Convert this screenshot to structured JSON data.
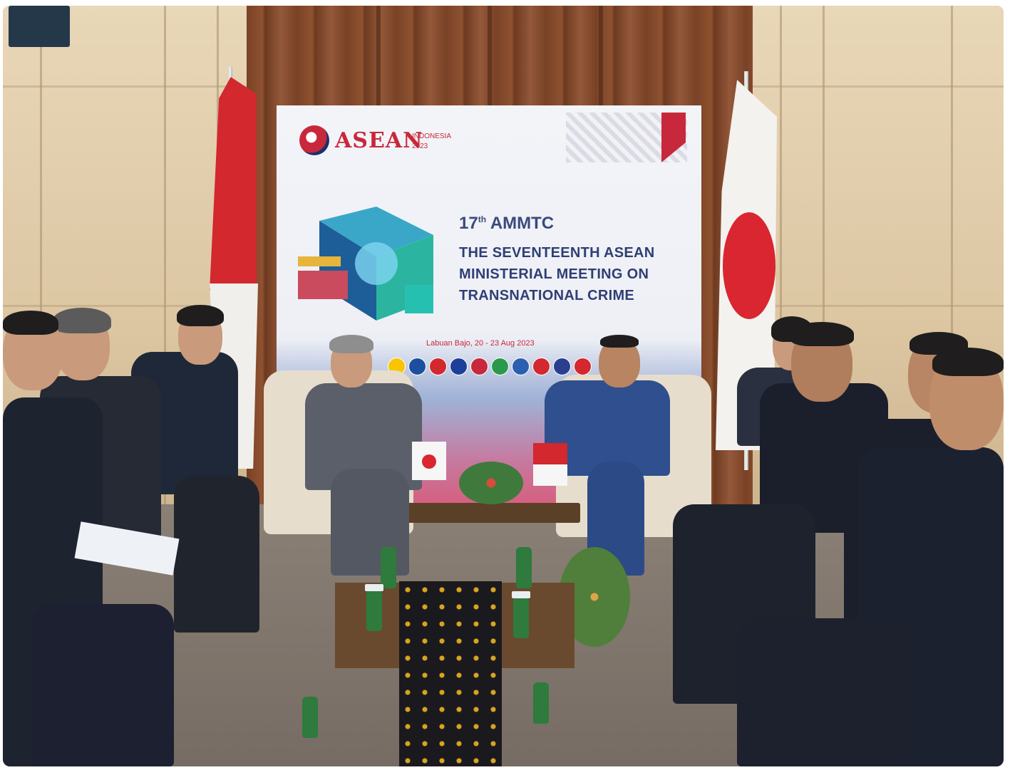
{
  "banner": {
    "logo_word": "ASEAN",
    "logo_country": "INDONESIA",
    "logo_year": "2023",
    "event_short_prefix": "17",
    "event_short_sup": "th",
    "event_short_name": "AMMTC",
    "title_lines": [
      "THE SEVENTEENTH ASEAN",
      "MINISTERIAL MEETING ON",
      "TRANSNATIONAL CRIME"
    ],
    "location_dates": "Labuan Bajo, 20 - 23 Aug 2023",
    "member_flag_colors": [
      "#f7c600",
      "#1d4fa0",
      "#d2282e",
      "#1d3f9a",
      "#c8283b",
      "#2a9a4a",
      "#2b5fb0",
      "#d2282e",
      "#2b3f8f",
      "#d2282e"
    ]
  },
  "scene": {
    "flags": [
      "indonesia-flag",
      "japan-flag"
    ],
    "accent_red": "#d2282e",
    "brand_red": "#c8283b",
    "brand_navy": "#2f3f74"
  }
}
